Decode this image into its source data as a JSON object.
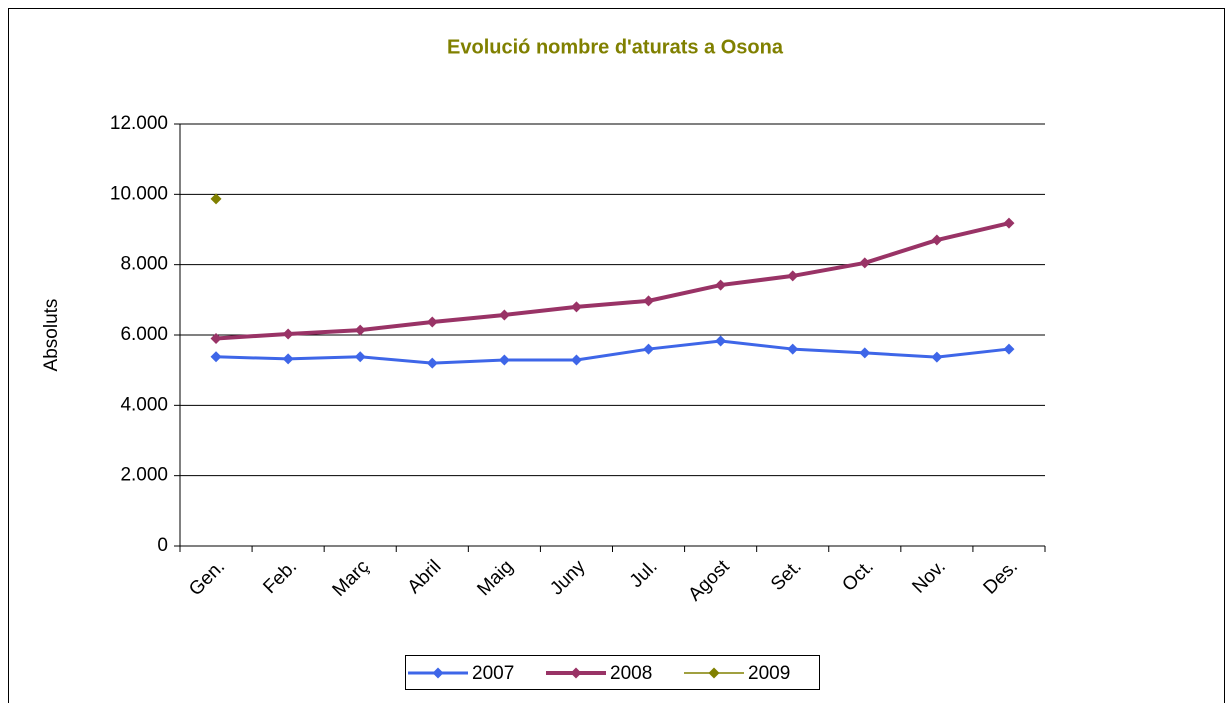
{
  "chart_data": {
    "type": "line",
    "title": "Evolució nombre d'aturats a Osona",
    "y_label": "Absoluts",
    "categories": [
      "Gen.",
      "Feb.",
      "Març",
      "Abril",
      "Maig",
      "Juny",
      "Jul.",
      "Agost",
      "Set.",
      "Oct.",
      "Nov.",
      "Des."
    ],
    "series": [
      {
        "name": "2007",
        "color": "#3e66e8",
        "values": [
          5380,
          5320,
          5380,
          5200,
          5290,
          5290,
          5600,
          5830,
          5600,
          5490,
          5370,
          5600
        ]
      },
      {
        "name": "2008",
        "color": "#993366",
        "values": [
          5900,
          6030,
          6140,
          6370,
          6570,
          6800,
          6970,
          7420,
          7680,
          8050,
          8700,
          9180
        ]
      },
      {
        "name": "2009",
        "color": "#808000",
        "values": [
          9870,
          null,
          null,
          null,
          null,
          null,
          null,
          null,
          null,
          null,
          null,
          null
        ]
      }
    ],
    "ylim": [
      0,
      12000
    ],
    "yticks": [
      0,
      {
        "value": 2000,
        "label": "2.000"
      },
      {
        "value": 4000,
        "label": "4.000"
      },
      {
        "value": 6000,
        "label": "6.000"
      },
      {
        "value": 8000,
        "label": "8.000"
      },
      {
        "value": 10000,
        "label": "10.000"
      },
      {
        "value": 12000,
        "label": "12.000"
      }
    ],
    "grid": true,
    "legend": "bottom"
  }
}
